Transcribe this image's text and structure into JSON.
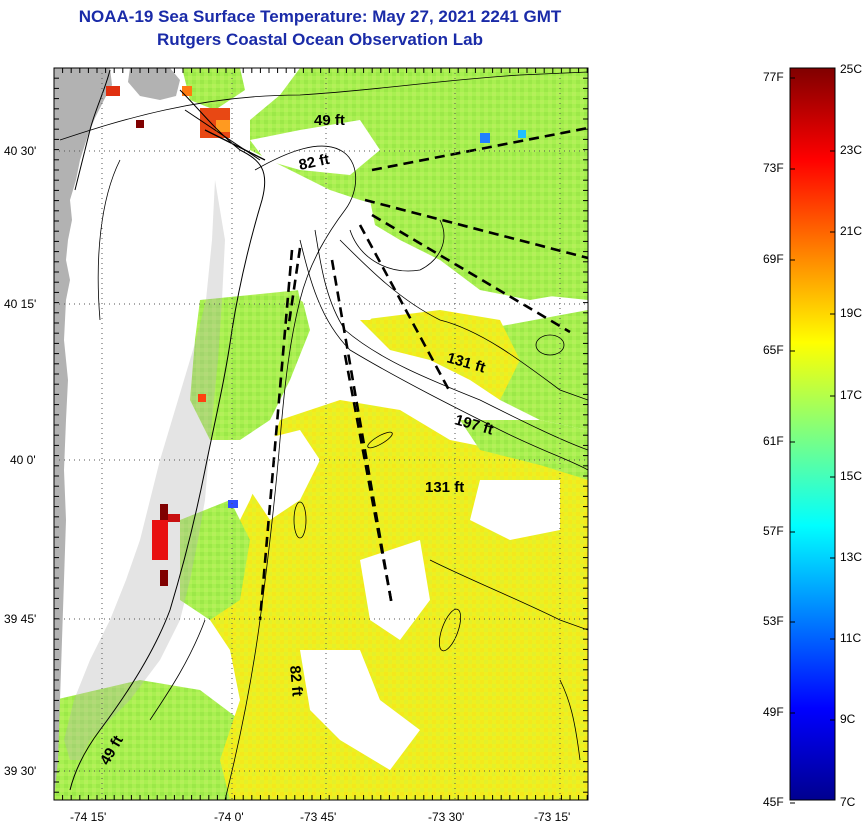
{
  "header": {
    "title_line1": "NOAA-19 Sea Surface Temperature:  May 27, 2021 2241 GMT",
    "title_line2": "Rutgers Coastal Ocean Observation Lab"
  },
  "map": {
    "lat_labels": [
      "40 30'",
      "40 15'",
      "40 0'",
      "39 45'",
      "39 30'"
    ],
    "lon_labels": [
      "-74 15'",
      "-74 0'",
      "-73 45'",
      "-73 30'",
      "-73 15'"
    ],
    "depth_labels": [
      "49 ft",
      "82 ft",
      "131 ft",
      "197 ft",
      "131 ft",
      "82 ft",
      "49 ft"
    ],
    "colors": {
      "land": "#b2b2b2",
      "title": "#1a2ba8"
    }
  },
  "colorbar": {
    "fahrenheit_labels": [
      "77F",
      "73F",
      "69F",
      "65F",
      "61F",
      "57F",
      "53F",
      "49F",
      "45F"
    ],
    "celsius_labels": [
      "25C",
      "23C",
      "21C",
      "19C",
      "17C",
      "15C",
      "13C",
      "11C",
      "9C",
      "7C"
    ],
    "range_c": [
      7,
      25
    ]
  }
}
